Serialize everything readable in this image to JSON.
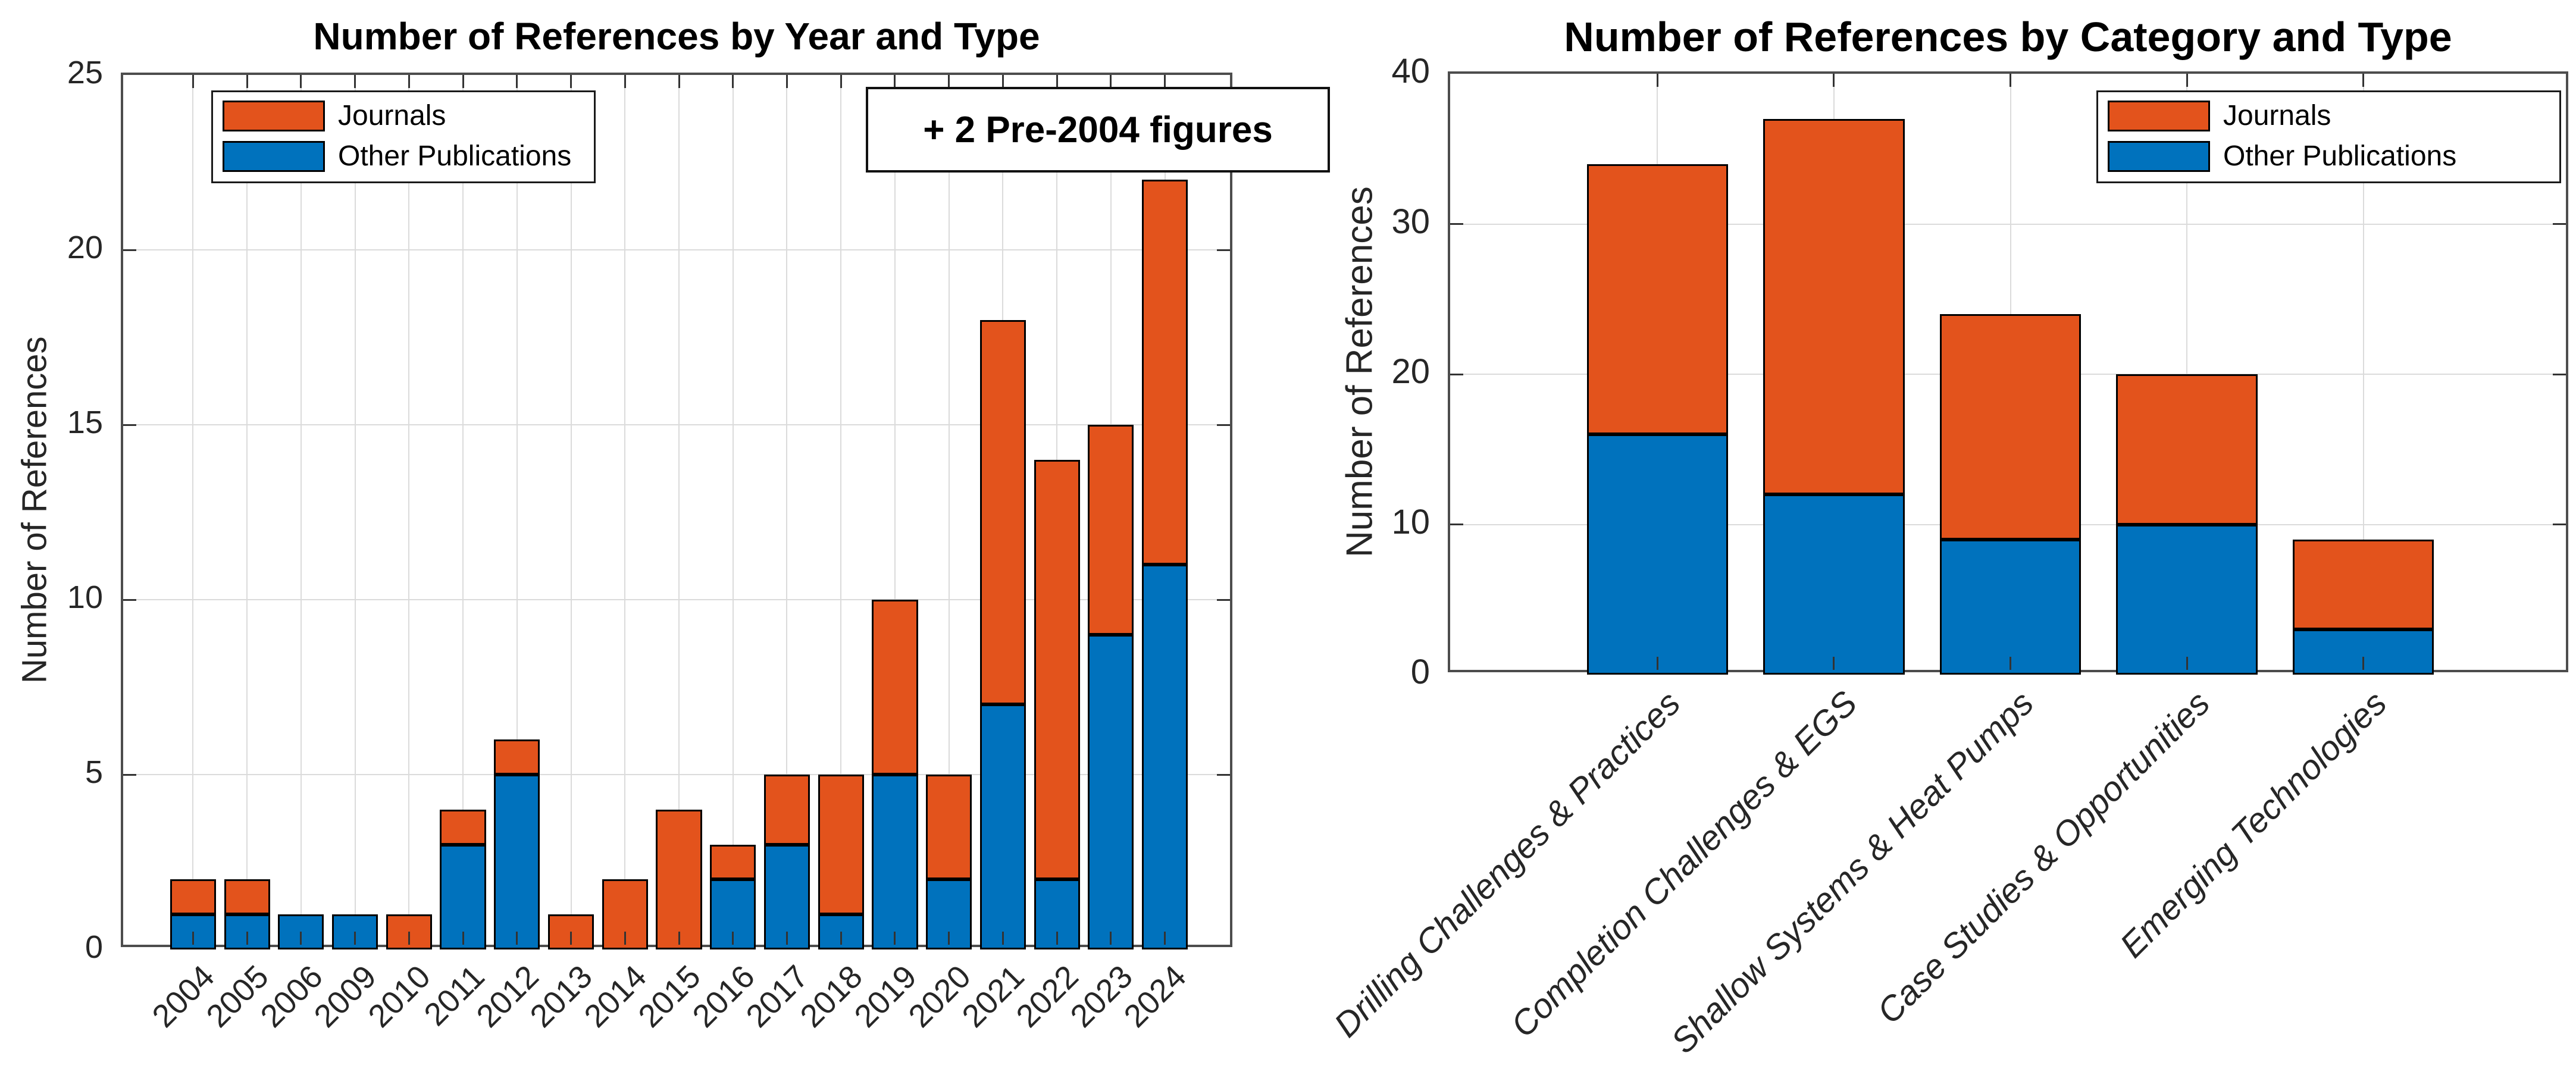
{
  "colors": {
    "journals": "#E3531C",
    "other_publications": "#0072BD",
    "bar_edge": "#000000",
    "axis": "#4D4D4D",
    "grid": "#DBDBDB",
    "text": "#262626"
  },
  "chart_data": [
    {
      "type": "bar",
      "stacked": true,
      "title": "Number of References by Year and Type",
      "ylabel": "Number of References",
      "xlabel": "",
      "categories": [
        "2004",
        "2005",
        "2006",
        "2009",
        "2010",
        "2011",
        "2012",
        "2013",
        "2014",
        "2015",
        "2016",
        "2017",
        "2018",
        "2019",
        "2020",
        "2021",
        "2022",
        "2023",
        "2024"
      ],
      "series": [
        {
          "name": "Other Publications",
          "color": "#0072BD",
          "values": [
            1,
            1,
            1,
            1,
            0,
            3,
            5,
            0,
            0,
            0,
            2,
            3,
            1,
            5,
            2,
            7,
            2,
            9,
            11
          ]
        },
        {
          "name": "Journals",
          "color": "#E3531C",
          "values": [
            1,
            1,
            0,
            0,
            1,
            1,
            1,
            1,
            2,
            4,
            1,
            2,
            4,
            5,
            3,
            11,
            12,
            6,
            11
          ]
        }
      ],
      "totals": [
        2,
        2,
        1,
        1,
        1,
        4,
        6,
        1,
        2,
        4,
        3,
        5,
        5,
        10,
        5,
        18,
        14,
        15,
        22
      ],
      "ylim": [
        0,
        25
      ],
      "yticks": [
        0,
        5,
        10,
        15,
        20,
        25
      ],
      "grid": true,
      "legend": [
        "Journals",
        "Other Publications"
      ],
      "legend_position": "northwest",
      "annotation": "+ 2 Pre-2004 figures",
      "xtick_rotation": 45
    },
    {
      "type": "bar",
      "stacked": true,
      "title": "Number of References by Category and Type",
      "ylabel": "Number of References",
      "xlabel": "",
      "categories": [
        "Drilling Challenges & Practices",
        "Completion Challenges & EGS",
        "Shallow Systems & Heat Pumps",
        "Case Studies & Opportunities",
        "Emerging Technologies"
      ],
      "series": [
        {
          "name": "Other Publications",
          "color": "#0072BD",
          "values": [
            16,
            12,
            9,
            10,
            3
          ]
        },
        {
          "name": "Journals",
          "color": "#E3531C",
          "values": [
            18,
            25,
            15,
            10,
            6
          ]
        }
      ],
      "totals": [
        34,
        37,
        24,
        20,
        9
      ],
      "ylim": [
        0,
        40
      ],
      "yticks": [
        0,
        10,
        20,
        30,
        40
      ],
      "grid": true,
      "legend": [
        "Journals",
        "Other Publications"
      ],
      "legend_position": "northeast",
      "annotation": "",
      "xtick_rotation": 45
    }
  ]
}
